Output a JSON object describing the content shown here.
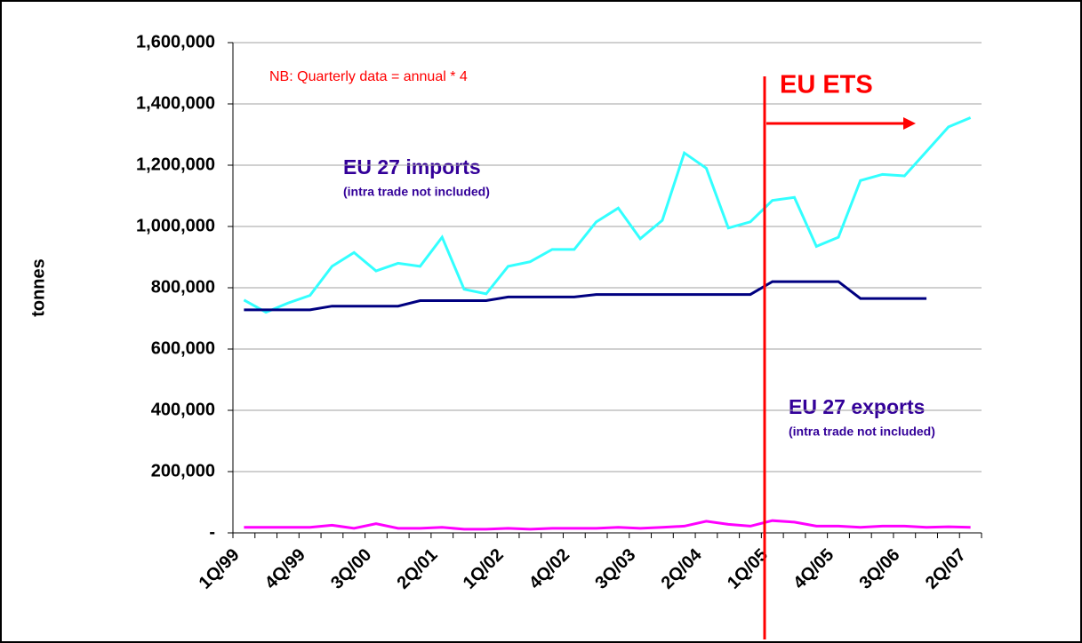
{
  "chart_data": {
    "type": "line",
    "y_label": "tonnes",
    "annotations": {
      "note": "NB: Quarterly data = annual * 4",
      "ets": "EU ETS",
      "imports": "EU 27 imports",
      "imports_sub": "(intra trade not included)",
      "exports": "EU 27 exports",
      "exports_sub": "(intra trade not included)"
    },
    "categories": [
      "1Q/99",
      null,
      null,
      "4Q/99",
      null,
      null,
      "3Q/00",
      null,
      null,
      "2Q/01",
      null,
      null,
      "1Q/02",
      null,
      null,
      "4Q/02",
      null,
      null,
      "3Q/03",
      null,
      null,
      "2Q/04",
      null,
      null,
      "1Q/05",
      null,
      null,
      "4Q/05",
      null,
      null,
      "3Q/06",
      null,
      null,
      "2Q/07"
    ],
    "series": [
      {
        "color": "#33ffff",
        "values": [
          760000,
          720000,
          750000,
          775000,
          870000,
          915000,
          855000,
          880000,
          870000,
          965000,
          795000,
          780000,
          870000,
          885000,
          925000,
          925000,
          1015000,
          1060000,
          960000,
          1020000,
          1240000,
          1190000,
          995000,
          1015000,
          1085000,
          1095000,
          935000,
          965000,
          1150000,
          1170000,
          1165000,
          1245000,
          1325000,
          1355000
        ]
      },
      {
        "color": "#000080",
        "values": [
          728000,
          728000,
          728000,
          728000,
          740000,
          740000,
          740000,
          740000,
          758000,
          758000,
          758000,
          758000,
          770000,
          770000,
          770000,
          770000,
          778000,
          778000,
          778000,
          778000,
          778000,
          778000,
          778000,
          778000,
          820000,
          820000,
          820000,
          820000,
          765000,
          765000,
          765000,
          765000,
          null,
          null
        ]
      },
      {
        "color": "#ff00ff",
        "values": [
          18000,
          18000,
          18000,
          18000,
          25000,
          15000,
          30000,
          15000,
          15000,
          18000,
          12000,
          12000,
          15000,
          12000,
          15000,
          15000,
          15000,
          18000,
          15000,
          18000,
          22000,
          38000,
          28000,
          22000,
          40000,
          35000,
          22000,
          22000,
          18000,
          22000,
          22000,
          18000,
          20000,
          18000
        ]
      }
    ],
    "ylim": [
      0,
      1600000
    ],
    "yticks": [
      {
        "value": 0,
        "label": "-"
      },
      {
        "value": 200000,
        "label": "200,000"
      },
      {
        "value": 400000,
        "label": "400,000"
      },
      {
        "value": 600000,
        "label": "600,000"
      },
      {
        "value": 800000,
        "label": "800,000"
      },
      {
        "value": 1000000,
        "label": "1,000,000"
      },
      {
        "value": 1200000,
        "label": "1,200,000"
      },
      {
        "value": 1400000,
        "label": "1,400,000"
      },
      {
        "value": 1600000,
        "label": "1,600,000"
      }
    ],
    "grid": true
  }
}
